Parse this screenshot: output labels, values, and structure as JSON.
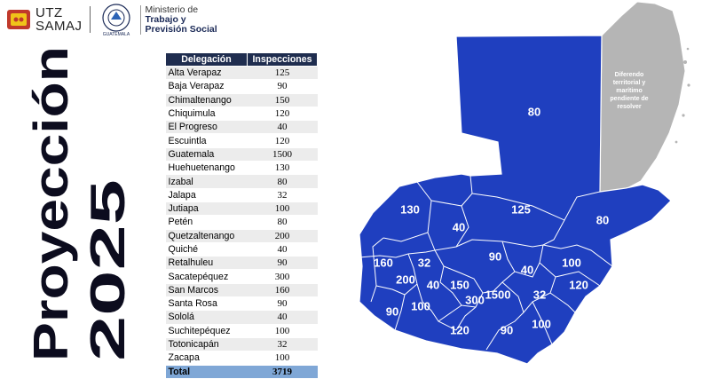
{
  "header": {
    "utz_line1": "UTZ",
    "utz_line2": "SAMAJ",
    "ministry_line1": "Ministerio de",
    "ministry_line2": "Trabajo y",
    "ministry_line3": "Previsión Social",
    "seal_text": "GUATEMALA"
  },
  "vertical_title": {
    "line1": "Proyección",
    "line2": "2025"
  },
  "table": {
    "headers": [
      "Delegación",
      "Inspecciones"
    ],
    "rows": [
      {
        "name": "Alta Verapaz",
        "value": "125"
      },
      {
        "name": "Baja Verapaz",
        "value": "90"
      },
      {
        "name": "Chimaltenango",
        "value": "150"
      },
      {
        "name": "Chiquimula",
        "value": "120"
      },
      {
        "name": "El Progreso",
        "value": "40"
      },
      {
        "name": "Escuintla",
        "value": "120"
      },
      {
        "name": "Guatemala",
        "value": "1500"
      },
      {
        "name": "Huehuetenango",
        "value": "130"
      },
      {
        "name": "Izabal",
        "value": "80"
      },
      {
        "name": "Jalapa",
        "value": "32"
      },
      {
        "name": "Jutiapa",
        "value": "100"
      },
      {
        "name": "Petén",
        "value": "80"
      },
      {
        "name": "Quetzaltenango",
        "value": "200"
      },
      {
        "name": "Quiché",
        "value": "40"
      },
      {
        "name": "Retalhuleu",
        "value": "90"
      },
      {
        "name": "Sacatepéquez",
        "value": "300"
      },
      {
        "name": "San Marcos",
        "value": "160"
      },
      {
        "name": "Santa Rosa",
        "value": "90"
      },
      {
        "name": "Sololá",
        "value": "40"
      },
      {
        "name": "Suchitepéquez",
        "value": "100"
      },
      {
        "name": "Totonicapán",
        "value": "32"
      },
      {
        "name": "Zacapa",
        "value": "100"
      }
    ],
    "total_label": "Total",
    "total_value": "3719"
  },
  "map": {
    "fill_color": "#1f3fbf",
    "dispute_color": "#b5b5b5",
    "dispute_label": "Diferendo territorial y marítimo pendiente de resolver",
    "labels": {
      "peten": "80",
      "huehuetenango": "130",
      "quiche": "40",
      "alta_verapaz": "125",
      "izabal": "80",
      "baja_verapaz": "90",
      "san_marcos": "160",
      "totonicapan": "32",
      "quetzaltenango": "200",
      "solola": "40",
      "chimaltenango": "150",
      "el_progreso": "40",
      "zacapa": "100",
      "chiquimula": "120",
      "retalhuleu": "90",
      "suchitepequez": "100",
      "sacatepequez": "300",
      "guatemala": "1500",
      "jalapa": "32",
      "escuintla": "120",
      "santa_rosa": "90",
      "jutiapa": "100"
    }
  }
}
